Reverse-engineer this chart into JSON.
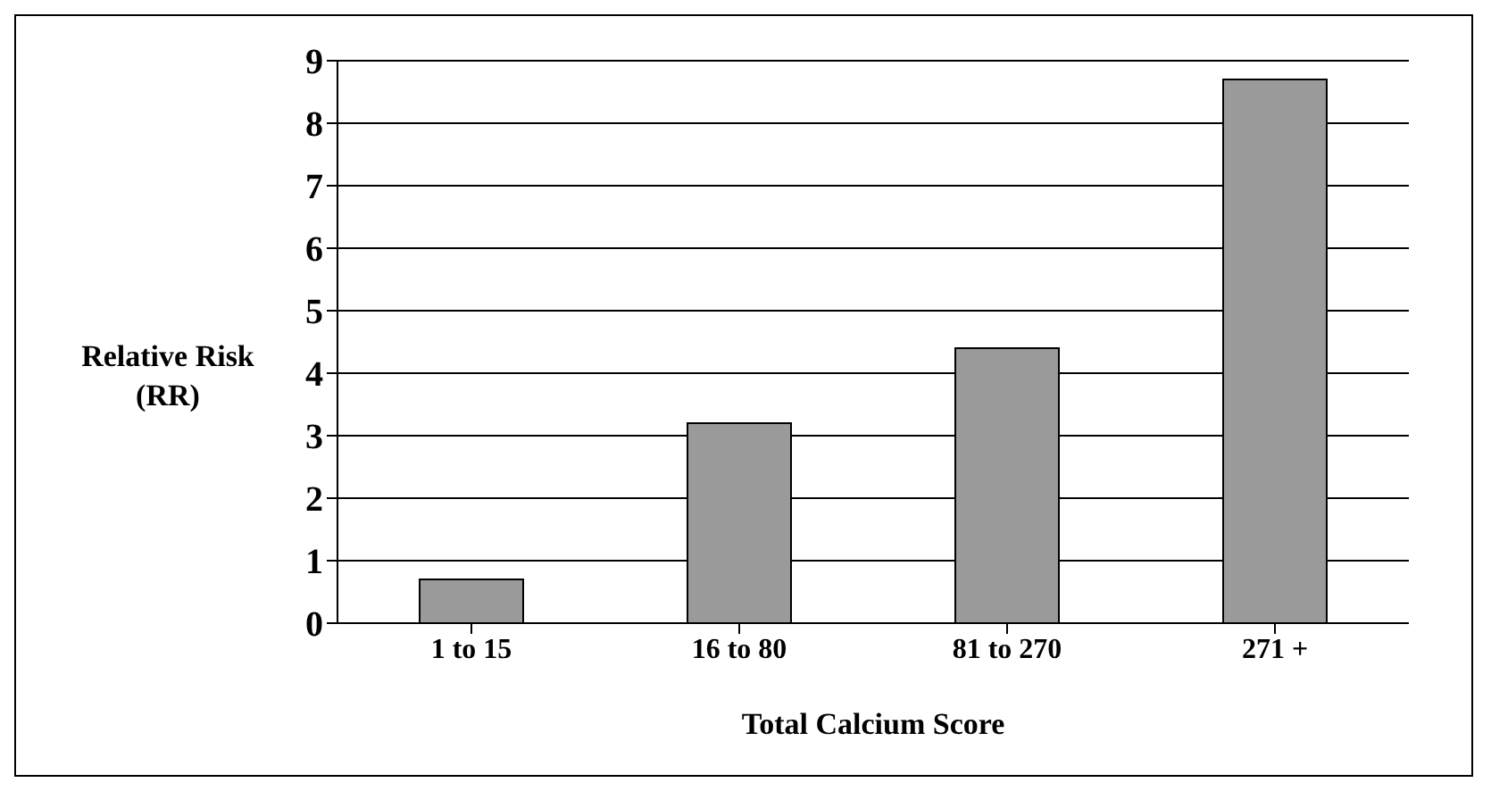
{
  "chart_data": {
    "type": "bar",
    "xlabel": "Total Calcium Score",
    "ylabel": "Relative Risk\n(RR)",
    "categories": [
      "1 to 15",
      "16 to 80",
      "81 to 270",
      "271 +"
    ],
    "values": [
      0.7,
      3.2,
      4.4,
      8.7
    ],
    "color": "#9a9a9a",
    "ylim": [
      0,
      9
    ],
    "yticks": [
      0,
      1,
      2,
      3,
      4,
      5,
      6,
      7,
      8,
      9
    ],
    "grid": "y"
  }
}
